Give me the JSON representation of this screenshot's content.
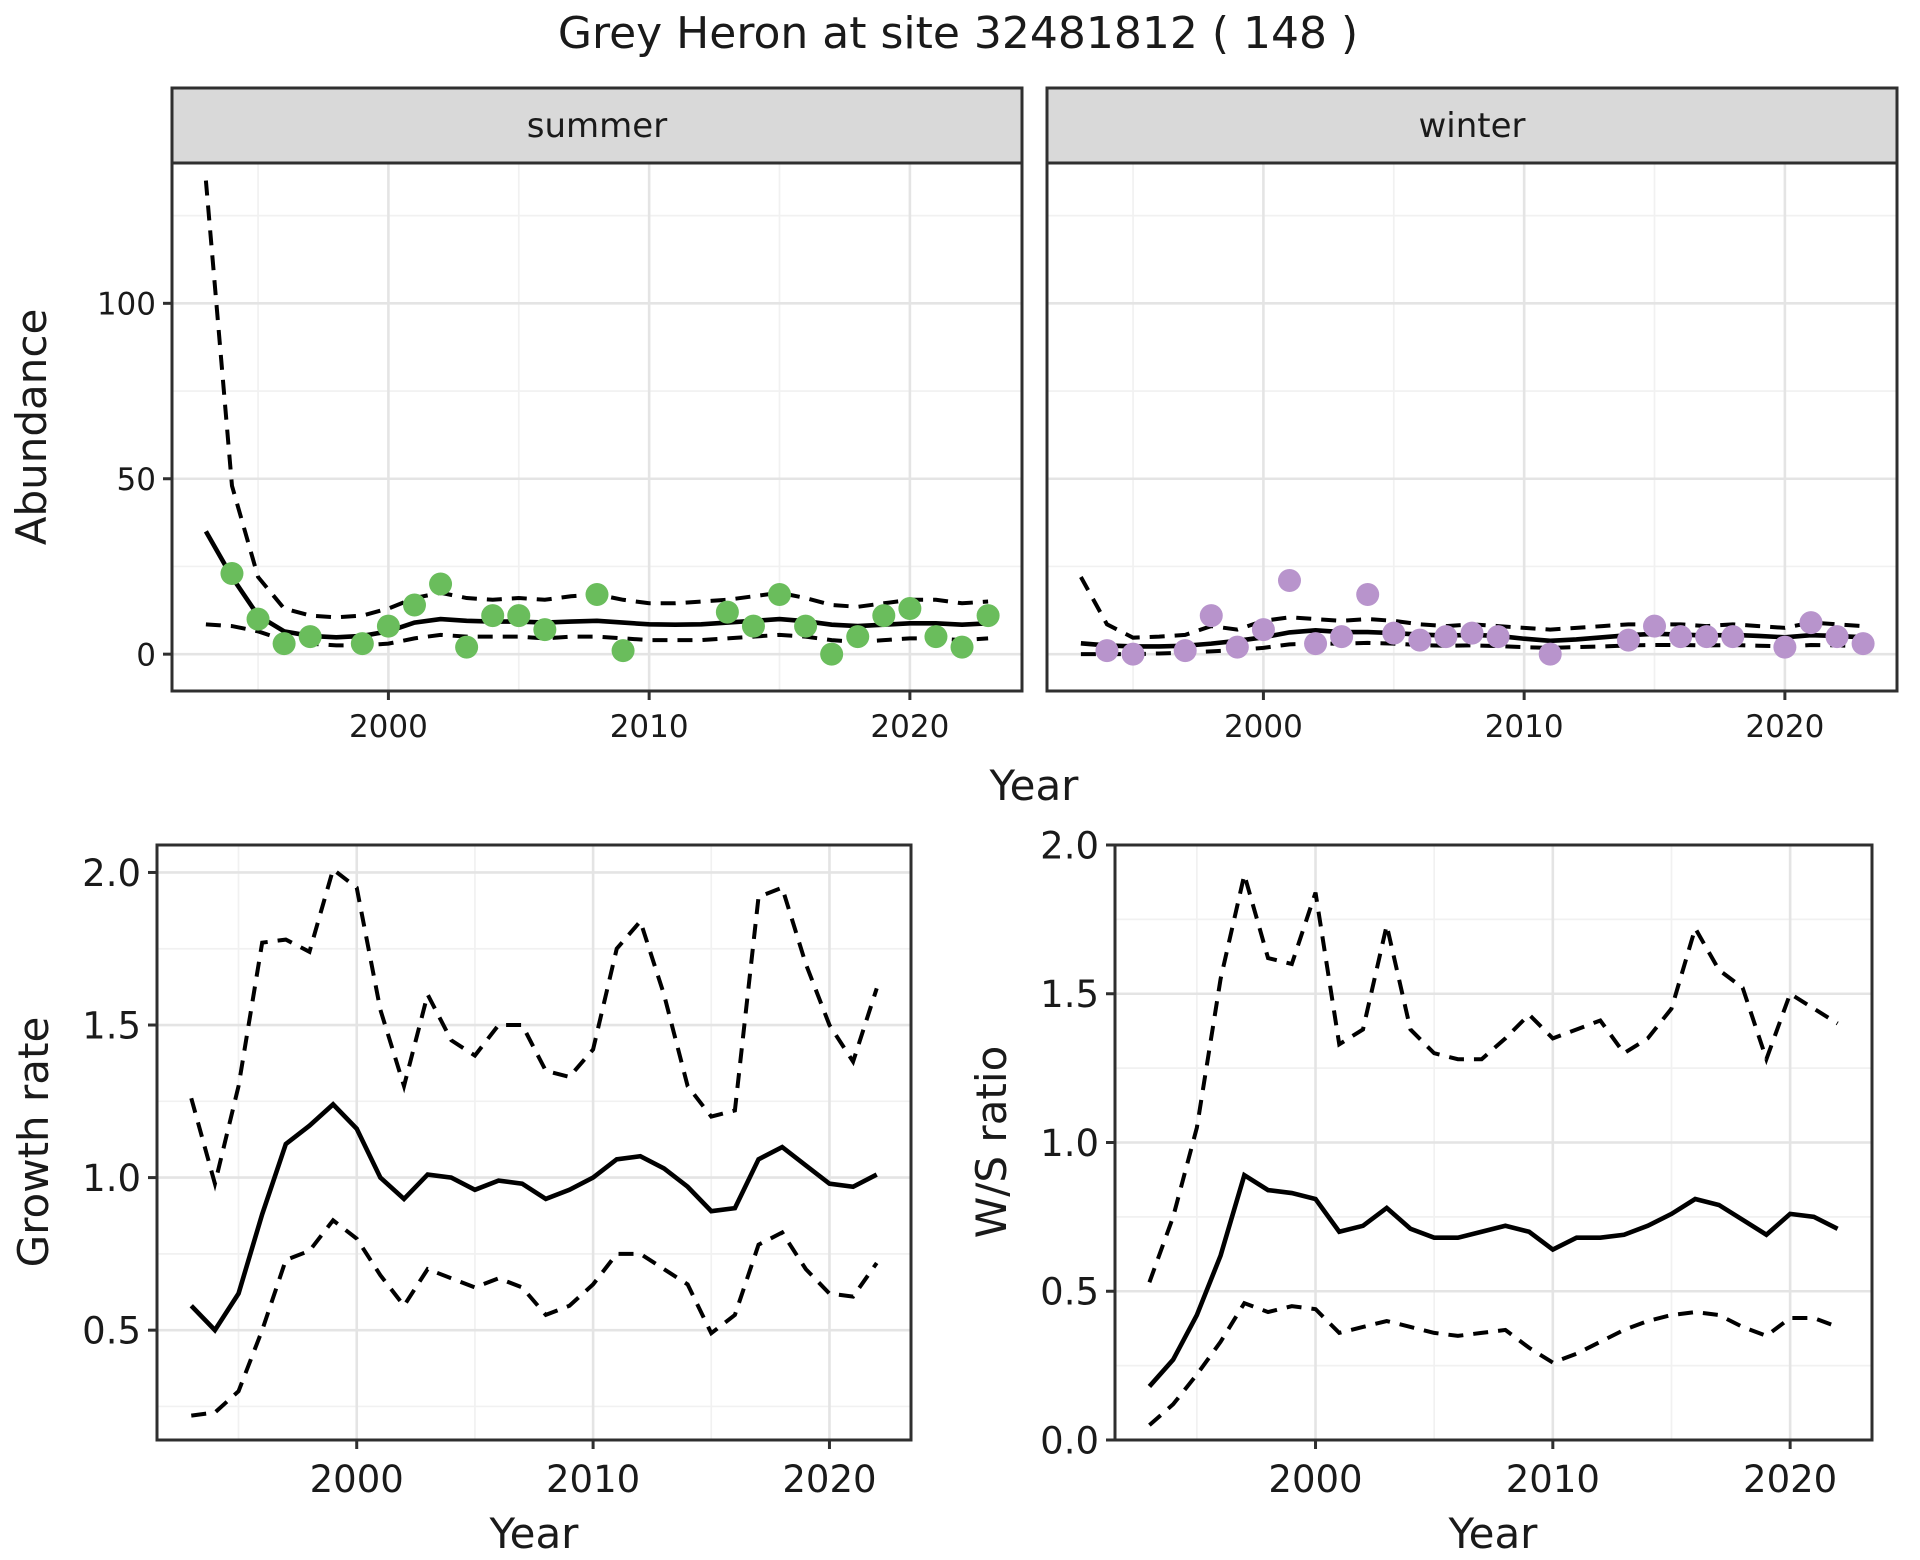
{
  "title": "Grey Heron at site 32481812 ( 148 )",
  "facets": [
    "summer",
    "winter"
  ],
  "axis_titles": {
    "abundance": "Abundance",
    "year_top": "Year",
    "growth_rate": "Growth rate",
    "year_bottom_left": "Year",
    "ws_ratio": "W/S ratio",
    "year_bottom_right": "Year"
  },
  "colors": {
    "summer_point": "#6abd5c",
    "winter_point": "#b894cc",
    "line": "#000000",
    "strip_fill": "#d9d9d9",
    "panel_border": "#2f2f2f",
    "grid_major": "#e4e4e4",
    "grid_minor": "#f1f1f1",
    "tick_label": "#4d4d4d",
    "panel_bg": "#ffffff"
  },
  "chart_data": [
    {
      "id": "abundance_summer",
      "type": "line",
      "facet_label": "summer",
      "title": "Grey Heron at site 32481812 ( 148 )",
      "xlabel": "Year",
      "ylabel": "Abundance",
      "xlim": [
        1991.7,
        2024.3
      ],
      "ylim": [
        -10.5,
        140
      ],
      "x_ticks": [
        2000,
        2010,
        2020
      ],
      "x_tick_labels": [
        "2000",
        "2010",
        "2020"
      ],
      "x_minor": [
        1995,
        2005,
        2015
      ],
      "y_ticks": [
        0,
        50,
        100
      ],
      "y_tick_labels": [
        "0",
        "50",
        "100"
      ],
      "y_minor": [
        25,
        75,
        125
      ],
      "years": [
        1993,
        1994,
        1995,
        1996,
        1997,
        1998,
        1999,
        2000,
        2001,
        2002,
        2003,
        2004,
        2005,
        2006,
        2007,
        2008,
        2009,
        2010,
        2011,
        2012,
        2013,
        2014,
        2015,
        2016,
        2017,
        2018,
        2019,
        2020,
        2021,
        2022,
        2023
      ],
      "median": [
        35,
        22,
        11,
        6.5,
        5.2,
        4.8,
        5.2,
        6.5,
        9,
        10,
        9.5,
        9.3,
        9.3,
        9,
        9.3,
        9.5,
        9,
        8.5,
        8.4,
        8.5,
        9,
        9.5,
        10,
        9.4,
        8.4,
        8,
        8.4,
        8.8,
        8.8,
        8.4,
        8.8
      ],
      "upper": [
        135,
        48,
        22,
        13,
        11,
        10.5,
        11,
        13,
        16,
        17.5,
        16,
        15.5,
        16,
        15.5,
        16.5,
        17,
        15.5,
        14.5,
        14.5,
        15,
        15.5,
        16.5,
        17.5,
        16,
        14,
        13.5,
        14.5,
        15.5,
        15.5,
        14.5,
        15
      ],
      "lower": [
        8.5,
        8,
        6.5,
        4,
        3,
        2.5,
        2.5,
        3,
        4.5,
        5.5,
        5,
        5,
        5,
        4.5,
        5,
        5,
        4.5,
        4,
        4,
        4,
        4.5,
        5,
        5.5,
        5,
        4,
        3.5,
        4,
        4.5,
        4.5,
        4,
        4.5
      ],
      "points": {
        "years": [
          1994,
          1995,
          1996,
          1997,
          1999,
          2000,
          2001,
          2002,
          2003,
          2004,
          2005,
          2006,
          2008,
          2009,
          2013,
          2014,
          2015,
          2016,
          2017,
          2018,
          2019,
          2020,
          2021,
          2022,
          2023
        ],
        "values": [
          23,
          10,
          3,
          5,
          3,
          8,
          14,
          20,
          2,
          11,
          11,
          7,
          17,
          1,
          12,
          8,
          17,
          8,
          0,
          5,
          11,
          13,
          5,
          2,
          11
        ]
      },
      "point_color": "#6abd5c"
    },
    {
      "id": "abundance_winter",
      "type": "line",
      "facet_label": "winter",
      "xlabel": "Year",
      "ylabel": "Abundance",
      "xlim": [
        1991.7,
        2024.3
      ],
      "ylim": [
        -10.5,
        140
      ],
      "x_ticks": [
        2000,
        2010,
        2020
      ],
      "x_tick_labels": [
        "2000",
        "2010",
        "2020"
      ],
      "x_minor": [
        1995,
        2005,
        2015
      ],
      "y_ticks": [
        0,
        50,
        100
      ],
      "y_tick_labels": [
        "0",
        "50",
        "100"
      ],
      "y_minor": [
        25,
        75,
        125
      ],
      "years": [
        1993,
        1994,
        1995,
        1996,
        1997,
        1998,
        1999,
        2000,
        2001,
        2002,
        2003,
        2004,
        2005,
        2006,
        2007,
        2008,
        2009,
        2010,
        2011,
        2012,
        2013,
        2014,
        2015,
        2016,
        2017,
        2018,
        2019,
        2020,
        2021,
        2022,
        2023
      ],
      "median": [
        3.1,
        2.5,
        2.2,
        2.2,
        2.4,
        3.0,
        3.8,
        4.8,
        6.2,
        6.8,
        6.3,
        6.3,
        6.0,
        5.6,
        5.3,
        5.5,
        5.2,
        4.4,
        3.8,
        4.2,
        4.8,
        5.4,
        5.8,
        5.6,
        5.3,
        5.5,
        5.2,
        4.8,
        5.4,
        5.2,
        4.8
      ],
      "upper": [
        22,
        8.5,
        4.7,
        5.0,
        5.5,
        8.0,
        7.0,
        9.5,
        10.5,
        10,
        9.5,
        10,
        9.5,
        8.5,
        8.0,
        8.5,
        8.0,
        7.5,
        7.0,
        7.5,
        8.0,
        8.5,
        8.5,
        8.5,
        8.0,
        8.5,
        8.0,
        7.5,
        9.0,
        8.5,
        8.0
      ],
      "lower": [
        0,
        0,
        0,
        0.2,
        0.4,
        0.8,
        1.2,
        1.8,
        2.8,
        3.0,
        3.0,
        3.2,
        3.0,
        2.6,
        2.4,
        2.5,
        2.3,
        2.0,
        1.8,
        2.0,
        2.2,
        2.5,
        2.6,
        2.6,
        2.5,
        2.6,
        2.4,
        2.2,
        2.6,
        2.5,
        2.3
      ],
      "points": {
        "years": [
          1994,
          1995,
          1997,
          1998,
          1999,
          2000,
          2001,
          2002,
          2003,
          2004,
          2005,
          2006,
          2007,
          2008,
          2009,
          2011,
          2014,
          2015,
          2016,
          2017,
          2018,
          2020,
          2021,
          2022,
          2023
        ],
        "values": [
          1,
          0,
          1,
          11,
          2,
          7,
          21,
          3,
          5,
          17,
          6,
          4,
          5,
          6,
          5,
          0,
          4,
          8,
          5,
          5,
          5,
          2,
          9,
          5,
          3
        ]
      },
      "point_color": "#b894cc"
    },
    {
      "id": "growth_rate",
      "type": "line",
      "xlabel": "Year",
      "ylabel": "Growth rate",
      "xlim": [
        1991.55,
        2023.45
      ],
      "ylim": [
        0.14,
        2.09
      ],
      "x_ticks": [
        2000,
        2010,
        2020
      ],
      "x_tick_labels": [
        "2000",
        "2010",
        "2020"
      ],
      "x_minor": [
        1995,
        2005,
        2015
      ],
      "y_ticks": [
        0.5,
        1.0,
        1.5,
        2.0
      ],
      "y_tick_labels": [
        "0.5",
        "1.0",
        "1.5",
        "2.0"
      ],
      "y_minor": [
        0.25,
        0.75,
        1.25,
        1.75
      ],
      "years": [
        1993,
        1994,
        1995,
        1996,
        1997,
        1998,
        1999,
        2000,
        2001,
        2002,
        2003,
        2004,
        2005,
        2006,
        2007,
        2008,
        2009,
        2010,
        2011,
        2012,
        2013,
        2014,
        2015,
        2016,
        2017,
        2018,
        2019,
        2020,
        2021,
        2022
      ],
      "median": [
        0.58,
        0.5,
        0.62,
        0.88,
        1.11,
        1.17,
        1.24,
        1.16,
        1.0,
        0.93,
        1.01,
        1.0,
        0.96,
        0.99,
        0.98,
        0.93,
        0.96,
        1.0,
        1.06,
        1.07,
        1.03,
        0.97,
        0.89,
        0.9,
        1.06,
        1.1,
        1.04,
        0.98,
        0.97,
        1.01
      ],
      "upper": [
        1.26,
        0.98,
        1.3,
        1.77,
        1.78,
        1.74,
        2.01,
        1.95,
        1.55,
        1.3,
        1.6,
        1.45,
        1.4,
        1.5,
        1.5,
        1.35,
        1.33,
        1.42,
        1.75,
        1.84,
        1.6,
        1.3,
        1.2,
        1.22,
        1.92,
        1.95,
        1.7,
        1.5,
        1.38,
        1.62
      ],
      "lower": [
        0.22,
        0.23,
        0.3,
        0.5,
        0.73,
        0.76,
        0.86,
        0.8,
        0.68,
        0.58,
        0.7,
        0.67,
        0.64,
        0.67,
        0.64,
        0.55,
        0.58,
        0.65,
        0.75,
        0.75,
        0.7,
        0.65,
        0.49,
        0.55,
        0.78,
        0.82,
        0.7,
        0.62,
        0.61,
        0.72
      ]
    },
    {
      "id": "ws_ratio",
      "type": "line",
      "xlabel": "Year",
      "ylabel": "W/S ratio",
      "xlim": [
        1991.55,
        2023.45
      ],
      "ylim": [
        0.0,
        2.0
      ],
      "x_ticks": [
        2000,
        2010,
        2020
      ],
      "x_tick_labels": [
        "2000",
        "2010",
        "2020"
      ],
      "x_minor": [
        1995,
        2005,
        2015
      ],
      "y_ticks": [
        0.0,
        0.5,
        1.0,
        1.5,
        2.0
      ],
      "y_tick_labels": [
        "0.0",
        "0.5",
        "1.0",
        "1.5",
        "2.0"
      ],
      "y_minor": [
        0.25,
        0.75,
        1.25,
        1.75
      ],
      "years": [
        1993,
        1994,
        1995,
        1996,
        1997,
        1998,
        1999,
        2000,
        2001,
        2002,
        2003,
        2004,
        2005,
        2006,
        2007,
        2008,
        2009,
        2010,
        2011,
        2012,
        2013,
        2014,
        2015,
        2016,
        2017,
        2018,
        2019,
        2020,
        2021,
        2022
      ],
      "median": [
        0.18,
        0.27,
        0.42,
        0.62,
        0.89,
        0.84,
        0.83,
        0.81,
        0.7,
        0.72,
        0.78,
        0.71,
        0.68,
        0.68,
        0.7,
        0.72,
        0.7,
        0.64,
        0.68,
        0.68,
        0.69,
        0.72,
        0.76,
        0.81,
        0.79,
        0.74,
        0.69,
        0.76,
        0.75,
        0.71
      ],
      "upper": [
        0.53,
        0.75,
        1.05,
        1.55,
        1.9,
        1.62,
        1.6,
        1.84,
        1.33,
        1.38,
        1.73,
        1.38,
        1.3,
        1.28,
        1.28,
        1.35,
        1.43,
        1.35,
        1.38,
        1.41,
        1.3,
        1.35,
        1.45,
        1.72,
        1.58,
        1.52,
        1.28,
        1.5,
        1.45,
        1.4
      ],
      "lower": [
        0.05,
        0.12,
        0.22,
        0.33,
        0.46,
        0.43,
        0.45,
        0.44,
        0.36,
        0.38,
        0.4,
        0.38,
        0.36,
        0.35,
        0.36,
        0.37,
        0.31,
        0.26,
        0.29,
        0.33,
        0.37,
        0.4,
        0.42,
        0.43,
        0.42,
        0.38,
        0.35,
        0.41,
        0.41,
        0.38
      ]
    }
  ]
}
